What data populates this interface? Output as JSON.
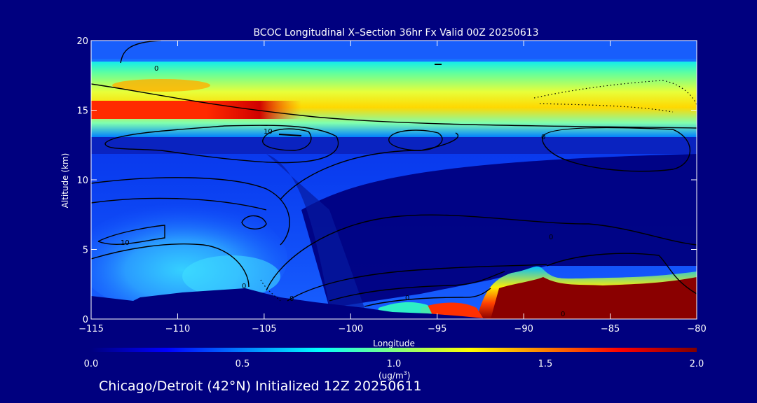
{
  "chart_data": {
    "type": "heatmap",
    "title": "BCOC Longitudinal X–Section 36hr  Fx Valid 00Z 20250613",
    "xlabel": "Longitude",
    "ylabel": "Altitude (km)",
    "xlim": [
      -115,
      -80
    ],
    "ylim": [
      0,
      20
    ],
    "x_ticks": [
      -115,
      -110,
      -105,
      -100,
      -95,
      -90,
      -85,
      -80
    ],
    "x_tick_labels": [
      "−115",
      "−110",
      "−105",
      "−100",
      "−95",
      "−90",
      "−85",
      "−80"
    ],
    "y_ticks": [
      0,
      5,
      10,
      15,
      20
    ],
    "y_tick_labels": [
      "0",
      "5",
      "10",
      "15",
      "20"
    ],
    "colorbar": {
      "min": 0.0,
      "max": 2.0,
      "ticks": [
        0.0,
        0.5,
        1.0,
        1.5,
        2.0
      ],
      "tick_labels": [
        "0.0",
        "0.5",
        "1.0",
        "1.5",
        "2.0"
      ],
      "units_label": "(ug/m",
      "units_superscript": "3",
      "units_close": ")",
      "colors": [
        "#00007f",
        "#0000ff",
        "#0080ff",
        "#00ffff",
        "#80ff80",
        "#ffff00",
        "#ff8000",
        "#ff0000",
        "#7f0000"
      ]
    },
    "fields": [
      {
        "name": "stratospheric band",
        "x_range": [
          -115,
          -80
        ],
        "alt_range": [
          15.5,
          18.5
        ],
        "value": 1.1
      },
      {
        "name": "band core",
        "x_range": [
          -115,
          -104
        ],
        "alt_range": [
          14.5,
          15.5
        ],
        "value": 1.85
      },
      {
        "name": "plume",
        "x_range": [
          -92,
          -80
        ],
        "alt_range": [
          0,
          2.7
        ],
        "value": 2.0
      },
      {
        "name": "lower plume",
        "x_range": [
          -95,
          -92
        ],
        "alt_range": [
          0,
          0.8
        ],
        "value": 1.9
      },
      {
        "name": "western low layer",
        "x_range": [
          -113,
          -103
        ],
        "alt_range": [
          1.5,
          5.5
        ],
        "value": 0.55
      }
    ],
    "contour_labels": [
      "0",
      "10",
      "10",
      "0",
      "0",
      "0",
      "0",
      "0",
      "0"
    ]
  },
  "footer": {
    "location": "Chicago/Detroit (42°N) Initialized 12Z 20250611"
  }
}
